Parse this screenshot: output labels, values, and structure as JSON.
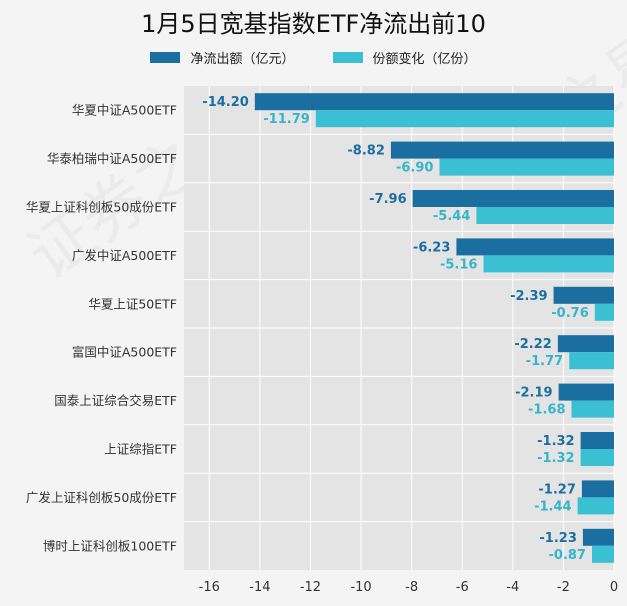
{
  "chart_data": {
    "type": "bar",
    "orientation": "horizontal",
    "title": "1月5日宽基指数ETF净流出前10",
    "categories": [
      "华夏中证A500ETF",
      "华泰柏瑞中证A500ETF",
      "华夏上证科创板50成份ETF",
      "广发中证A500ETF",
      "华夏上证50ETF",
      "富国中证A500ETF",
      "国泰上证综合交易ETF",
      "上证综指ETF",
      "广发上证科创板50成份ETF",
      "博时上证科创板100ETF"
    ],
    "series": [
      {
        "name": "净流出额（亿元）",
        "color": "#1b6fa0",
        "label_color": "#1b6fa0",
        "values": [
          -14.2,
          -8.82,
          -7.96,
          -6.23,
          -2.39,
          -2.22,
          -2.19,
          -1.32,
          -1.27,
          -1.23
        ],
        "labels": [
          "-14.20",
          "-8.82",
          "-7.96",
          "-6.23",
          "-2.39",
          "-2.22",
          "-2.19",
          "-1.32",
          "-1.27",
          "-1.23"
        ]
      },
      {
        "name": "份额变化（亿份）",
        "color": "#3bc0d3",
        "label_color": "#35b5cc",
        "values": [
          -11.79,
          -6.9,
          -5.44,
          -5.16,
          -0.76,
          -1.77,
          -1.68,
          -1.32,
          -1.44,
          -0.87
        ],
        "labels": [
          "-11.79",
          "-6.90",
          "-5.44",
          "-5.16",
          "-0.76",
          "-1.77",
          "-1.68",
          "-1.32",
          "-1.44",
          "-0.87"
        ]
      }
    ],
    "xlim": [
      -17,
      0
    ],
    "xticks": [
      -16,
      -14,
      -12,
      -10,
      -8,
      -6,
      -4,
      -2,
      0
    ],
    "xtick_labels": [
      "-16",
      "-14",
      "-12",
      "-10",
      "-8",
      "-6",
      "-4",
      "-2",
      "0"
    ],
    "grid": true,
    "legend_position": "top-center"
  },
  "watermark": {
    "text": "证券之星"
  }
}
